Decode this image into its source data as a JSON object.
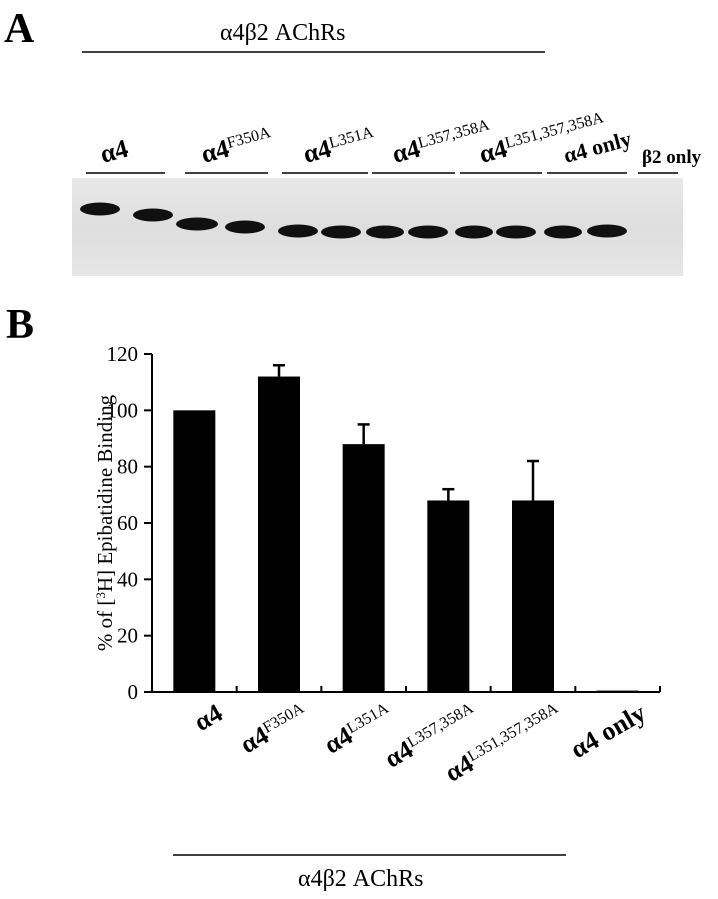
{
  "panel_a": {
    "letter": "A",
    "bracket_label": "α4β2 AChRs",
    "lanes": [
      {
        "base": "α4",
        "sup": ""
      },
      {
        "base": "α4",
        "sup": "F350A"
      },
      {
        "base": "α4",
        "sup": "L351A"
      },
      {
        "base": "α4",
        "sup": "L357,358A"
      },
      {
        "base": "α4",
        "sup": "L351,357,358A"
      },
      {
        "base": "α4",
        "sup": " only"
      },
      {
        "base": "β2",
        "sup": " only"
      }
    ]
  },
  "panel_b": {
    "letter": "B",
    "bracket_label": "α4β2 AChRs"
  },
  "chart_data": {
    "type": "bar",
    "categories": [
      {
        "base": "α4",
        "sup": ""
      },
      {
        "base": "α4",
        "sup": "F350A"
      },
      {
        "base": "α4",
        "sup": "L351A"
      },
      {
        "base": "α4",
        "sup": "L357,358A"
      },
      {
        "base": "α4",
        "sup": "L351,357,358A"
      },
      {
        "base": "α4 only",
        "sup": ""
      }
    ],
    "values": [
      100,
      112,
      88,
      68,
      68,
      0.5
    ],
    "errors": [
      0,
      4,
      7,
      4,
      14,
      0
    ],
    "ylabel_parts": {
      "pre": "% of [",
      "sup": "3",
      "post": "H] Epibatidine Binding"
    },
    "ylim": [
      0,
      120
    ],
    "yticks": [
      0,
      20,
      40,
      60,
      80,
      100,
      120
    ],
    "bar_color": "#000000"
  }
}
